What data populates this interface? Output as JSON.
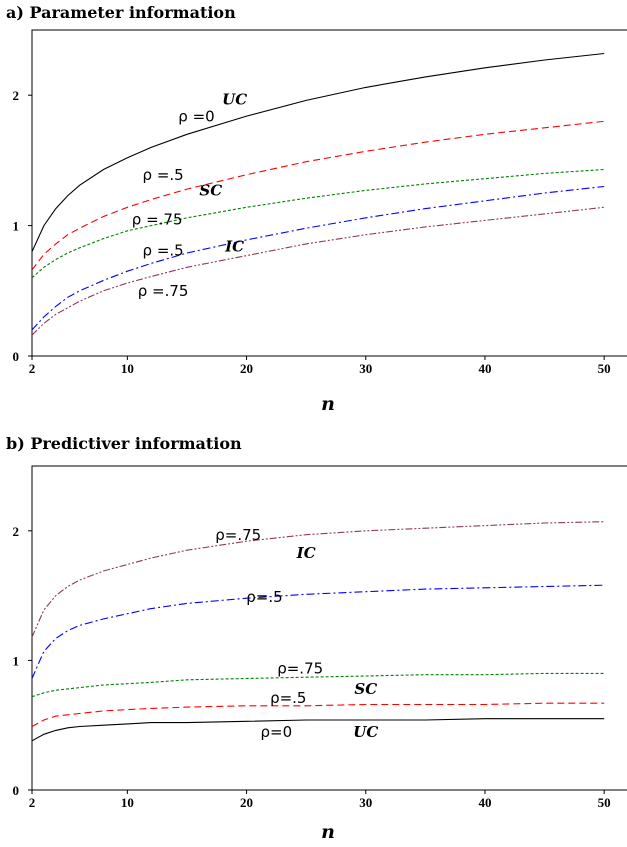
{
  "chart_data": [
    {
      "type": "line",
      "title": "a) Parameter information",
      "xlabel": "n",
      "ylabel": "",
      "xlim": [
        2,
        52
      ],
      "ylim": [
        0,
        2.5
      ],
      "xticks": [
        2,
        10,
        20,
        30,
        40,
        50
      ],
      "yticks": [
        0,
        1,
        2
      ],
      "grid": false,
      "x": [
        2,
        3,
        4,
        5,
        6,
        8,
        10,
        12,
        15,
        20,
        25,
        30,
        35,
        40,
        45,
        50
      ],
      "series": [
        {
          "color": "#000000",
          "dash": "solid",
          "values": [
            0.8,
            1.0,
            1.13,
            1.23,
            1.31,
            1.43,
            1.52,
            1.6,
            1.7,
            1.84,
            1.96,
            2.06,
            2.14,
            2.21,
            2.27,
            2.32
          ]
        },
        {
          "color": "#ff0000",
          "dash": "dash",
          "values": [
            0.66,
            0.78,
            0.86,
            0.93,
            0.98,
            1.07,
            1.14,
            1.2,
            1.28,
            1.39,
            1.49,
            1.57,
            1.64,
            1.7,
            1.75,
            1.8
          ]
        },
        {
          "color": "#008000",
          "dash": "dash-small",
          "values": [
            0.6,
            0.68,
            0.74,
            0.79,
            0.83,
            0.9,
            0.96,
            1.0,
            1.06,
            1.14,
            1.21,
            1.27,
            1.32,
            1.36,
            1.4,
            1.43
          ]
        },
        {
          "color": "#0000ff",
          "dash": "dash-dot",
          "values": [
            0.2,
            0.3,
            0.38,
            0.45,
            0.5,
            0.58,
            0.65,
            0.71,
            0.79,
            0.89,
            0.98,
            1.06,
            1.13,
            1.19,
            1.25,
            1.3
          ]
        },
        {
          "color": "#8b3a62",
          "dash": "dash-dot-dot",
          "values": [
            0.16,
            0.25,
            0.32,
            0.37,
            0.42,
            0.5,
            0.56,
            0.61,
            0.68,
            0.77,
            0.86,
            0.93,
            0.99,
            1.04,
            1.09,
            1.14
          ]
        }
      ],
      "annotations": [
        {
          "text": "ρ =0",
          "kind": "rho",
          "x": 15.8,
          "y": 1.8
        },
        {
          "text": "UC",
          "kind": "group",
          "x": 19.0,
          "y": 1.93
        },
        {
          "text": "ρ =.5",
          "kind": "rho",
          "x": 13.0,
          "y": 1.35
        },
        {
          "text": "SC",
          "kind": "group",
          "x": 17.0,
          "y": 1.23
        },
        {
          "text": "ρ =.75",
          "kind": "rho",
          "x": 12.5,
          "y": 1.01
        },
        {
          "text": "ρ =.5",
          "kind": "rho",
          "x": 13.0,
          "y": 0.77
        },
        {
          "text": "IC",
          "kind": "group",
          "x": 19.0,
          "y": 0.8
        },
        {
          "text": "ρ =.75",
          "kind": "rho",
          "x": 13.0,
          "y": 0.46
        }
      ]
    },
    {
      "type": "line",
      "title": "b) Predictiver information",
      "xlabel": "n",
      "ylabel": "",
      "xlim": [
        2,
        52
      ],
      "ylim": [
        0,
        2.5
      ],
      "xticks": [
        2,
        10,
        20,
        30,
        40,
        50
      ],
      "yticks": [
        0,
        1,
        2
      ],
      "grid": false,
      "x": [
        2,
        3,
        4,
        5,
        6,
        8,
        10,
        12,
        15,
        20,
        25,
        30,
        35,
        40,
        45,
        50
      ],
      "series": [
        {
          "color": "#8b3a62",
          "dash": "dash-dot-dot",
          "values": [
            1.18,
            1.39,
            1.5,
            1.57,
            1.62,
            1.69,
            1.74,
            1.79,
            1.85,
            1.92,
            1.97,
            2.0,
            2.02,
            2.04,
            2.06,
            2.07
          ]
        },
        {
          "color": "#0000ff",
          "dash": "dash-dot",
          "values": [
            0.86,
            1.07,
            1.17,
            1.23,
            1.27,
            1.32,
            1.36,
            1.4,
            1.44,
            1.48,
            1.51,
            1.53,
            1.55,
            1.56,
            1.57,
            1.58
          ]
        },
        {
          "color": "#008000",
          "dash": "dash-small",
          "values": [
            0.72,
            0.75,
            0.77,
            0.78,
            0.79,
            0.81,
            0.82,
            0.83,
            0.85,
            0.86,
            0.87,
            0.88,
            0.89,
            0.89,
            0.9,
            0.9
          ]
        },
        {
          "color": "#ff0000",
          "dash": "dash",
          "values": [
            0.49,
            0.54,
            0.57,
            0.58,
            0.59,
            0.61,
            0.62,
            0.63,
            0.64,
            0.65,
            0.65,
            0.66,
            0.66,
            0.66,
            0.67,
            0.67
          ]
        },
        {
          "color": "#000000",
          "dash": "solid",
          "values": [
            0.38,
            0.43,
            0.46,
            0.48,
            0.49,
            0.5,
            0.51,
            0.52,
            0.52,
            0.53,
            0.54,
            0.54,
            0.54,
            0.55,
            0.55,
            0.55
          ]
        }
      ],
      "annotations": [
        {
          "text": "ρ=.75",
          "kind": "rho",
          "x": 19.3,
          "y": 1.93
        },
        {
          "text": "IC",
          "kind": "group",
          "x": 25.0,
          "y": 1.79
        },
        {
          "text": "ρ=.5",
          "kind": "rho",
          "x": 21.5,
          "y": 1.45
        },
        {
          "text": "ρ=.75",
          "kind": "rho",
          "x": 24.5,
          "y": 0.9
        },
        {
          "text": "ρ=.5",
          "kind": "rho",
          "x": 23.5,
          "y": 0.67
        },
        {
          "text": "SC",
          "kind": "group",
          "x": 30.0,
          "y": 0.74
        },
        {
          "text": "ρ=0",
          "kind": "rho",
          "x": 22.5,
          "y": 0.41
        },
        {
          "text": "UC",
          "kind": "group",
          "x": 30.0,
          "y": 0.41
        }
      ]
    }
  ]
}
